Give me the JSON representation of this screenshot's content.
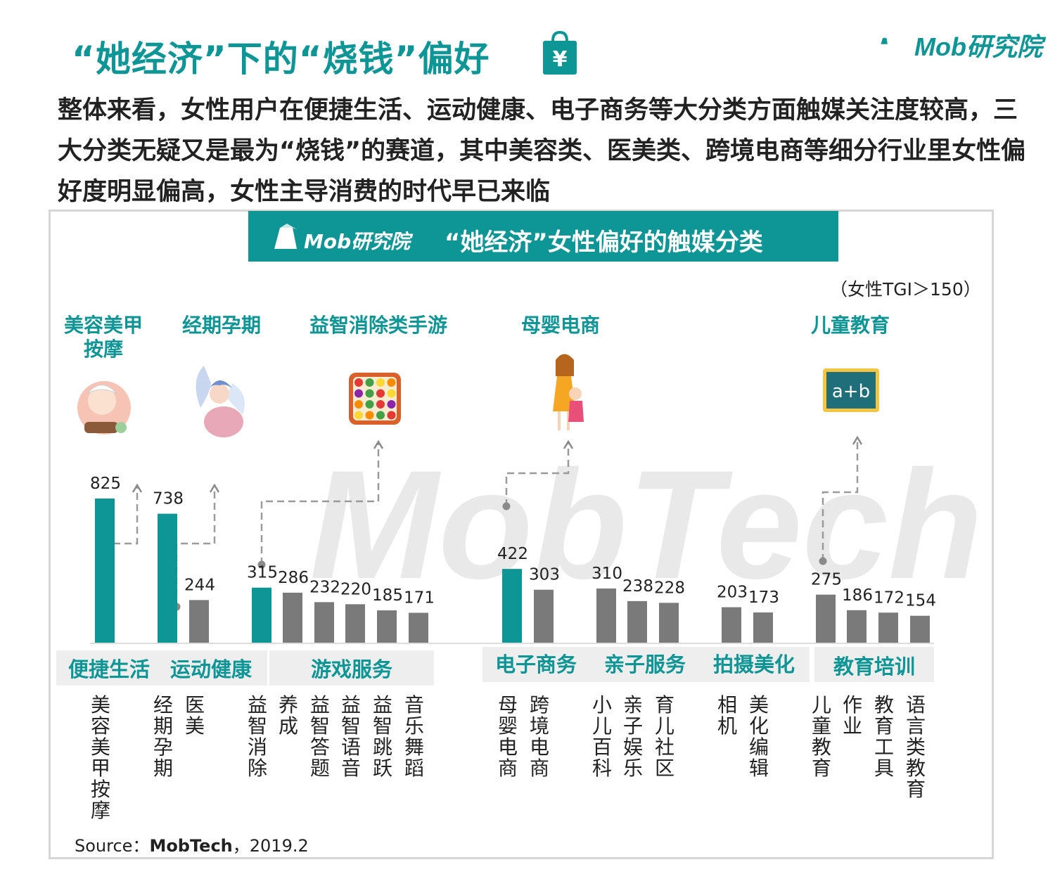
{
  "header": {
    "title": "“她经济”下的“烧钱”偏好",
    "brand": "Mob研究院",
    "subtitle": "整体来看，女性用户在便捷生活、运动健康、电子商务等大分类方面触媒关注度较高，三大分类无疑又是最为“烧钱”的赛道，其中美容类、医美类、跨境电商等细分行业里女性偏好度明显偏高，女性主导消费的时代早已来临"
  },
  "panel": {
    "brand": "Mob研究院",
    "title": "“她经济”女性偏好的触媒分类",
    "note": "（女性TGI＞150）",
    "watermark": "MobTech",
    "source_label": "Source：",
    "source_org": "MobTech",
    "source_date": "，2019.2"
  },
  "colors": {
    "highlight": "#0e9596",
    "normal": "#7a7a7a",
    "group_bg": "#eeeeee",
    "accent": "#0e9596"
  },
  "chart_data": {
    "type": "bar",
    "unit": "TGI",
    "categories": [
      "美容美甲按摩",
      "经期孕期",
      "医美",
      "益智消除",
      "养成",
      "益智答题",
      "益智语音",
      "益智跳跃",
      "音乐舞蹈",
      "母婴电商",
      "跨境电商",
      "小儿百科",
      "亲子娱乐",
      "育儿社区",
      "相机",
      "美化编辑",
      "儿童教育",
      "作业",
      "教育工具",
      "语言类教育"
    ],
    "values": [
      825,
      738,
      244,
      315,
      286,
      232,
      220,
      185,
      171,
      422,
      303,
      310,
      238,
      228,
      203,
      173,
      275,
      186,
      172,
      154
    ],
    "highlighted": [
      true,
      true,
      false,
      true,
      false,
      false,
      false,
      false,
      false,
      true,
      false,
      false,
      false,
      false,
      false,
      false,
      false,
      false,
      false,
      false
    ],
    "groups": [
      {
        "label": "便捷生活",
        "bars": [
          0
        ]
      },
      {
        "label": "运动健康",
        "bars": [
          1,
          2
        ]
      },
      {
        "label": "游戏服务",
        "bars": [
          3,
          4,
          5,
          6,
          7,
          8
        ]
      },
      {
        "label": "电子商务",
        "bars": [
          9,
          10
        ]
      },
      {
        "label": "亲子服务",
        "bars": [
          11,
          12,
          13
        ]
      },
      {
        "label": "拍摄美化",
        "bars": [
          14,
          15
        ]
      },
      {
        "label": "教育培训",
        "bars": [
          16,
          17,
          18,
          19
        ]
      }
    ],
    "callouts": [
      {
        "label": "美容美甲按摩",
        "bar": 0,
        "icon": "face-mask-woman-icon"
      },
      {
        "label": "经期孕期",
        "bar": 1,
        "icon": "angel-woman-icon"
      },
      {
        "label": "益智消除类手游",
        "bar": 3,
        "icon": "fruit-puzzle-game-icon"
      },
      {
        "label": "母婴电商",
        "bar": 9,
        "icon": "mother-child-icon"
      },
      {
        "label": "儿童教育",
        "bar": 16,
        "icon": "chalkboard-icon"
      }
    ],
    "callout_board_text": "a+b"
  }
}
